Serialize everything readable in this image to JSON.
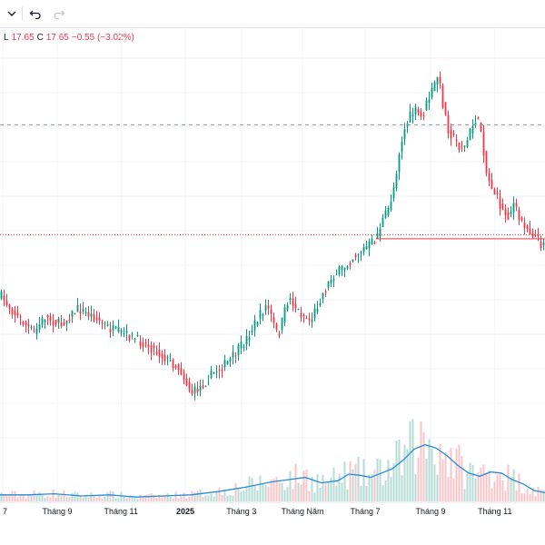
{
  "toolbar": {
    "dropdown_icon": "chevron-down-icon",
    "undo_icon": "undo-icon",
    "redo_icon": "redo-icon"
  },
  "legend": {
    "low_label": "L",
    "low_value": "17.65",
    "close_label": "C",
    "close_value": "17.65",
    "change": "−0.55 (−3.02%)"
  },
  "colors": {
    "up": "#089981",
    "down": "#f23645",
    "up_volume": "#b7dcd5",
    "down_volume": "#f7c4c8",
    "volume_ma": "#2a8bd8",
    "grid": "#f0f3fa",
    "dashed_line": "#9598a1",
    "price_line": "#f23645"
  },
  "chart_data": {
    "type": "candlestick",
    "xaxis_labels": [
      {
        "text": "7",
        "bold": false,
        "t": 0.005
      },
      {
        "text": "Tháng 9",
        "bold": false,
        "t": 0.105
      },
      {
        "text": "Tháng 11",
        "bold": false,
        "t": 0.222
      },
      {
        "text": "2025",
        "bold": true,
        "t": 0.34
      },
      {
        "text": "Tháng 3",
        "bold": false,
        "t": 0.443
      },
      {
        "text": "Tháng Năm",
        "bold": false,
        "t": 0.555
      },
      {
        "text": "Tháng 7",
        "bold": false,
        "t": 0.67
      },
      {
        "text": "Tháng 9",
        "bold": false,
        "t": 0.79
      },
      {
        "text": "Tháng 11",
        "bold": false,
        "t": 0.908
      }
    ],
    "price_path": [
      [
        0.0,
        0.61
      ],
      [
        0.03,
        0.66
      ],
      [
        0.06,
        0.7
      ],
      [
        0.08,
        0.66
      ],
      [
        0.11,
        0.68
      ],
      [
        0.14,
        0.64
      ],
      [
        0.17,
        0.66
      ],
      [
        0.2,
        0.69
      ],
      [
        0.24,
        0.71
      ],
      [
        0.27,
        0.73
      ],
      [
        0.3,
        0.76
      ],
      [
        0.33,
        0.79
      ],
      [
        0.35,
        0.85
      ],
      [
        0.37,
        0.83
      ],
      [
        0.39,
        0.8
      ],
      [
        0.42,
        0.77
      ],
      [
        0.45,
        0.72
      ],
      [
        0.47,
        0.67
      ],
      [
        0.49,
        0.63
      ],
      [
        0.51,
        0.71
      ],
      [
        0.53,
        0.61
      ],
      [
        0.55,
        0.65
      ],
      [
        0.57,
        0.67
      ],
      [
        0.59,
        0.61
      ],
      [
        0.61,
        0.56
      ],
      [
        0.63,
        0.54
      ],
      [
        0.65,
        0.51
      ],
      [
        0.67,
        0.49
      ],
      [
        0.69,
        0.47
      ],
      [
        0.7,
        0.43
      ],
      [
        0.715,
        0.39
      ],
      [
        0.725,
        0.33
      ],
      [
        0.735,
        0.24
      ],
      [
        0.745,
        0.19
      ],
      [
        0.755,
        0.16
      ],
      [
        0.765,
        0.15
      ],
      [
        0.775,
        0.17
      ],
      [
        0.785,
        0.13
      ],
      [
        0.795,
        0.1
      ],
      [
        0.805,
        0.06
      ],
      [
        0.815,
        0.14
      ],
      [
        0.825,
        0.2
      ],
      [
        0.835,
        0.22
      ],
      [
        0.845,
        0.24
      ],
      [
        0.855,
        0.24
      ],
      [
        0.865,
        0.2
      ],
      [
        0.875,
        0.17
      ],
      [
        0.885,
        0.2
      ],
      [
        0.895,
        0.31
      ],
      [
        0.905,
        0.34
      ],
      [
        0.915,
        0.37
      ],
      [
        0.925,
        0.4
      ],
      [
        0.935,
        0.41
      ],
      [
        0.945,
        0.38
      ],
      [
        0.955,
        0.42
      ],
      [
        0.965,
        0.43
      ],
      [
        0.975,
        0.45
      ],
      [
        0.985,
        0.46
      ],
      [
        0.995,
        0.48
      ],
      [
        1.0,
        0.47
      ]
    ],
    "volume_ma_path": [
      [
        0.0,
        0.06
      ],
      [
        0.05,
        0.06
      ],
      [
        0.1,
        0.07
      ],
      [
        0.15,
        0.05
      ],
      [
        0.2,
        0.06
      ],
      [
        0.25,
        0.04
      ],
      [
        0.3,
        0.05
      ],
      [
        0.35,
        0.06
      ],
      [
        0.4,
        0.09
      ],
      [
        0.45,
        0.13
      ],
      [
        0.5,
        0.18
      ],
      [
        0.53,
        0.2
      ],
      [
        0.56,
        0.22
      ],
      [
        0.59,
        0.17
      ],
      [
        0.62,
        0.19
      ],
      [
        0.64,
        0.25
      ],
      [
        0.66,
        0.24
      ],
      [
        0.68,
        0.22
      ],
      [
        0.7,
        0.26
      ],
      [
        0.72,
        0.3
      ],
      [
        0.74,
        0.38
      ],
      [
        0.76,
        0.48
      ],
      [
        0.78,
        0.52
      ],
      [
        0.8,
        0.49
      ],
      [
        0.82,
        0.42
      ],
      [
        0.84,
        0.33
      ],
      [
        0.86,
        0.26
      ],
      [
        0.88,
        0.23
      ],
      [
        0.9,
        0.27
      ],
      [
        0.92,
        0.26
      ],
      [
        0.94,
        0.2
      ],
      [
        0.96,
        0.16
      ],
      [
        0.98,
        0.1
      ],
      [
        1.0,
        0.08
      ]
    ],
    "dashed_level": 0.185,
    "dotted_level": 0.457,
    "last_price_level": 0.467
  }
}
